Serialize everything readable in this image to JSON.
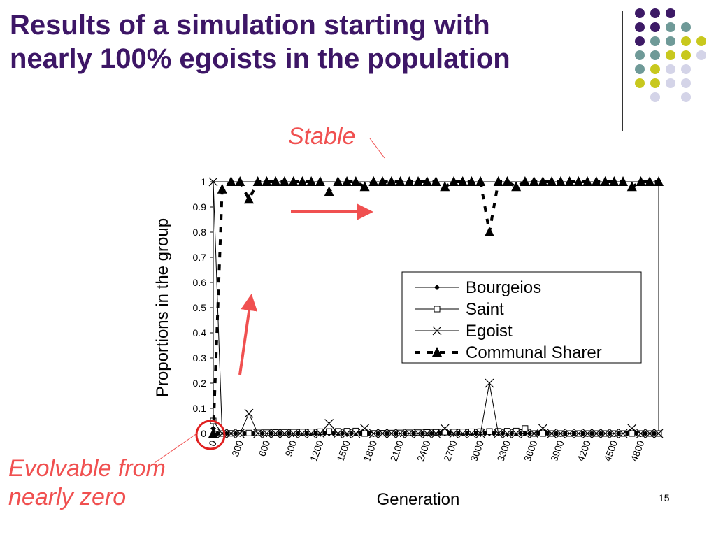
{
  "slide": {
    "title_line1": "Results of a simulation starting with",
    "title_line2": "nearly 100% egoists in the population",
    "page_number": "15",
    "annotation_stable": "Stable",
    "annotation_evolvable_line1": "Evolvable from",
    "annotation_evolvable_line2": "nearly zero",
    "colors": {
      "title": "#3d1666",
      "annotation": "#f05050",
      "dot_purple": "#3d1a66",
      "dot_teal": "#6f9a98",
      "dot_yellow": "#c8c81e",
      "dot_lavender": "#d4d4e8"
    },
    "dot_grid": [
      [
        "purple",
        "purple",
        "purple",
        "",
        ""
      ],
      [
        "purple",
        "purple",
        "teal",
        "teal",
        ""
      ],
      [
        "purple",
        "teal",
        "teal",
        "yellow",
        "yellow"
      ],
      [
        "teal",
        "teal",
        "yellow",
        "yellow",
        "lavender"
      ],
      [
        "teal",
        "yellow",
        "lavender",
        "lavender",
        ""
      ],
      [
        "yellow",
        "yellow",
        "lavender",
        "lavender",
        ""
      ],
      [
        "",
        "lavender",
        "",
        "lavender",
        ""
      ]
    ]
  },
  "chart_data": {
    "type": "line",
    "xlabel": "Generation",
    "ylabel": "Proportions in the group",
    "xlim": [
      0,
      5000
    ],
    "ylim": [
      0,
      1
    ],
    "x_ticks": [
      "0",
      "300",
      "600",
      "900",
      "1200",
      "1500",
      "1800",
      "2100",
      "2400",
      "2700",
      "3000",
      "3300",
      "3600",
      "3900",
      "4200",
      "4500",
      "4800"
    ],
    "y_ticks": [
      "0",
      "0.1",
      "0.2",
      "0.3",
      "0.4",
      "0.5",
      "0.6",
      "0.7",
      "0.8",
      "0.9",
      "1"
    ],
    "legend_position": "inside-right",
    "series": [
      {
        "name": "Bourgeios",
        "style": "solid-diamond",
        "points": [
          [
            0,
            0.02
          ],
          [
            50,
            0.0
          ],
          [
            5000,
            0.0
          ]
        ]
      },
      {
        "name": "Saint",
        "style": "solid-open-square",
        "points": [
          [
            0,
            0.05
          ],
          [
            100,
            0.0
          ],
          [
            1600,
            0.01
          ],
          [
            1700,
            0.0
          ],
          [
            3400,
            0.01
          ],
          [
            3500,
            0.02
          ],
          [
            3600,
            0.0
          ],
          [
            5000,
            0.0
          ]
        ]
      },
      {
        "name": "Egoist",
        "style": "solid-x",
        "points": [
          [
            0,
            1.0
          ],
          [
            100,
            0.0
          ],
          [
            300,
            0.0
          ],
          [
            400,
            0.08
          ],
          [
            500,
            0.0
          ],
          [
            1200,
            0.0
          ],
          [
            1300,
            0.04
          ],
          [
            1400,
            0.0
          ],
          [
            1600,
            0.0
          ],
          [
            1700,
            0.02
          ],
          [
            1800,
            0.0
          ],
          [
            2500,
            0.0
          ],
          [
            2600,
            0.02
          ],
          [
            2700,
            0.0
          ],
          [
            3000,
            0.0
          ],
          [
            3100,
            0.2
          ],
          [
            3200,
            0.0
          ],
          [
            3600,
            0.0
          ],
          [
            3700,
            0.02
          ],
          [
            3800,
            0.0
          ],
          [
            4600,
            0.0
          ],
          [
            4700,
            0.02
          ],
          [
            4800,
            0.0
          ],
          [
            5000,
            0.0
          ]
        ]
      },
      {
        "name": "Communal Sharer",
        "style": "dashed-triangle",
        "points": [
          [
            0,
            0.0
          ],
          [
            100,
            0.97
          ],
          [
            200,
            1.0
          ],
          [
            300,
            1.0
          ],
          [
            400,
            0.93
          ],
          [
            500,
            1.0
          ],
          [
            1200,
            1.0
          ],
          [
            1300,
            0.96
          ],
          [
            1400,
            1.0
          ],
          [
            1600,
            1.0
          ],
          [
            1700,
            0.98
          ],
          [
            1800,
            1.0
          ],
          [
            2500,
            1.0
          ],
          [
            2600,
            0.98
          ],
          [
            2700,
            1.0
          ],
          [
            3000,
            1.0
          ],
          [
            3100,
            0.8
          ],
          [
            3200,
            1.0
          ],
          [
            3300,
            1.0
          ],
          [
            3400,
            0.98
          ],
          [
            3500,
            1.0
          ],
          [
            4600,
            1.0
          ],
          [
            4700,
            0.98
          ],
          [
            4800,
            1.0
          ],
          [
            5000,
            1.0
          ]
        ]
      }
    ]
  }
}
